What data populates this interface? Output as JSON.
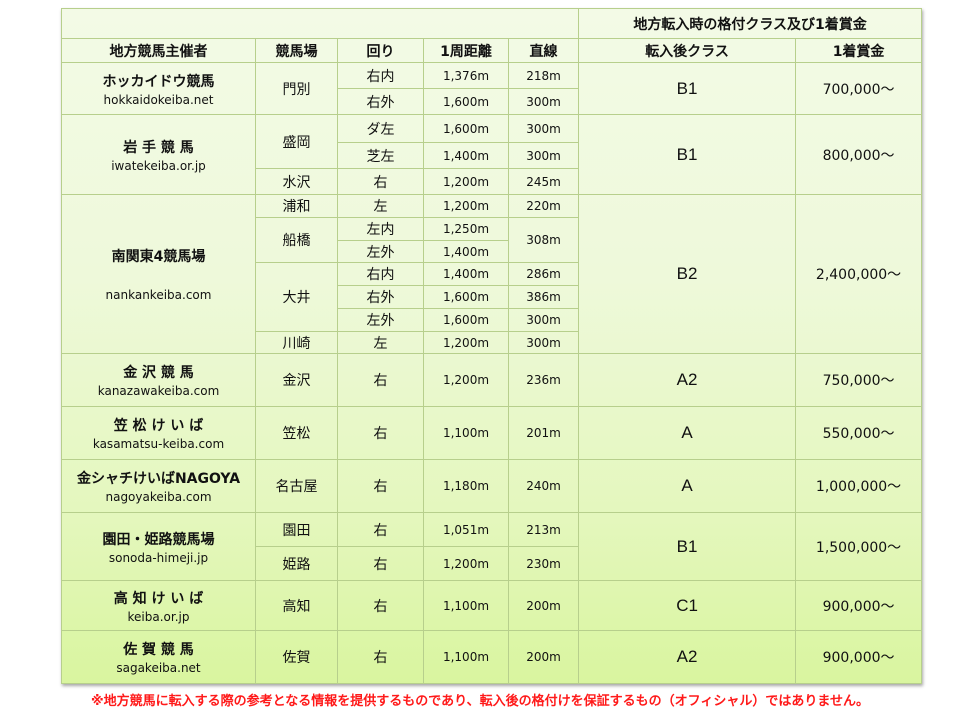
{
  "header": {
    "group_title": "地方転入時の格付クラス及び1着賞金",
    "columns": [
      "地方競馬主催者",
      "競馬場",
      "回り",
      "1周距離",
      "直線",
      "転入後クラス",
      "1着賞金"
    ]
  },
  "organizers": [
    {
      "name": "ホッカイドウ競馬",
      "url": "hokkaidokeiba.net",
      "class": "B1",
      "prize": "700,000〜",
      "tracks": [
        {
          "name": "門別",
          "courses": [
            {
              "dir": "右内",
              "dist": "1,376m",
              "straight": "218m"
            },
            {
              "dir": "右外",
              "dist": "1,600m",
              "straight": "300m"
            }
          ]
        }
      ]
    },
    {
      "name": "岩 手 競 馬",
      "url": "iwatekeiba.or.jp",
      "class": "B1",
      "prize": "800,000〜",
      "tracks": [
        {
          "name": "盛岡",
          "courses": [
            {
              "dir": "ダ左",
              "dist": "1,600m",
              "straight": "300m"
            },
            {
              "dir": "芝左",
              "dist": "1,400m",
              "straight": "300m"
            }
          ]
        },
        {
          "name": "水沢",
          "courses": [
            {
              "dir": "右",
              "dist": "1,200m",
              "straight": "245m"
            }
          ]
        }
      ]
    },
    {
      "name": "南関東4競馬場",
      "url": "nankankeiba.com",
      "class": "B2",
      "prize": "2,400,000〜",
      "tracks": [
        {
          "name": "浦和",
          "courses": [
            {
              "dir": "左",
              "dist": "1,200m",
              "straight": "220m"
            }
          ]
        },
        {
          "name": "船橋",
          "straight": "308m",
          "courses": [
            {
              "dir": "左内",
              "dist": "1,250m"
            },
            {
              "dir": "左外",
              "dist": "1,400m"
            }
          ]
        },
        {
          "name": "大井",
          "courses": [
            {
              "dir": "右内",
              "dist": "1,400m",
              "straight": "286m"
            },
            {
              "dir": "右外",
              "dist": "1,600m",
              "straight": "386m"
            },
            {
              "dir": "左外",
              "dist": "1,600m",
              "straight": "300m"
            }
          ]
        },
        {
          "name": "川崎",
          "courses": [
            {
              "dir": "左",
              "dist": "1,200m",
              "straight": "300m"
            }
          ]
        }
      ]
    },
    {
      "name": "金 沢 競 馬",
      "url": "kanazawakeiba.com",
      "class": "A2",
      "prize": "750,000〜",
      "tracks": [
        {
          "name": "金沢",
          "courses": [
            {
              "dir": "右",
              "dist": "1,200m",
              "straight": "236m"
            }
          ]
        }
      ]
    },
    {
      "name": "笠 松 け い ば",
      "url": "kasamatsu-keiba.com",
      "class": "A",
      "prize": "550,000〜",
      "tracks": [
        {
          "name": "笠松",
          "courses": [
            {
              "dir": "右",
              "dist": "1,100m",
              "straight": "201m"
            }
          ]
        }
      ]
    },
    {
      "name": "金シャチけいばNAGOYA",
      "url": "nagoyakeiba.com",
      "class": "A",
      "prize": "1,000,000〜",
      "tracks": [
        {
          "name": "名古屋",
          "courses": [
            {
              "dir": "右",
              "dist": "1,180m",
              "straight": "240m"
            }
          ]
        }
      ]
    },
    {
      "name": "園田・姫路競馬場",
      "url": "sonoda-himeji.jp",
      "class": "B1",
      "prize": "1,500,000〜",
      "tracks": [
        {
          "name": "園田",
          "courses": [
            {
              "dir": "右",
              "dist": "1,051m",
              "straight": "213m"
            }
          ]
        },
        {
          "name": "姫路",
          "courses": [
            {
              "dir": "右",
              "dist": "1,200m",
              "straight": "230m"
            }
          ]
        }
      ]
    },
    {
      "name": "高 知 け い ば",
      "url": "keiba.or.jp",
      "class": "C1",
      "prize": "900,000〜",
      "tracks": [
        {
          "name": "高知",
          "courses": [
            {
              "dir": "右",
              "dist": "1,100m",
              "straight": "200m"
            }
          ]
        }
      ]
    },
    {
      "name": "佐 賀 競 馬",
      "url": "sagakeiba.net",
      "class": "A2",
      "prize": "900,000〜",
      "tracks": [
        {
          "name": "佐賀",
          "courses": [
            {
              "dir": "右",
              "dist": "1,100m",
              "straight": "200m"
            }
          ]
        }
      ]
    }
  ],
  "footnote": "※地方競馬に転入する際の参考となる情報を提供するものであり、転入後の格付けを保証するもの（オフィシャル）ではありません。",
  "colors": {
    "border": "#b7cf8c",
    "background_top": "#f3fae6",
    "background_bottom": "#d9f59f",
    "footnote": "#ff1a1a"
  }
}
